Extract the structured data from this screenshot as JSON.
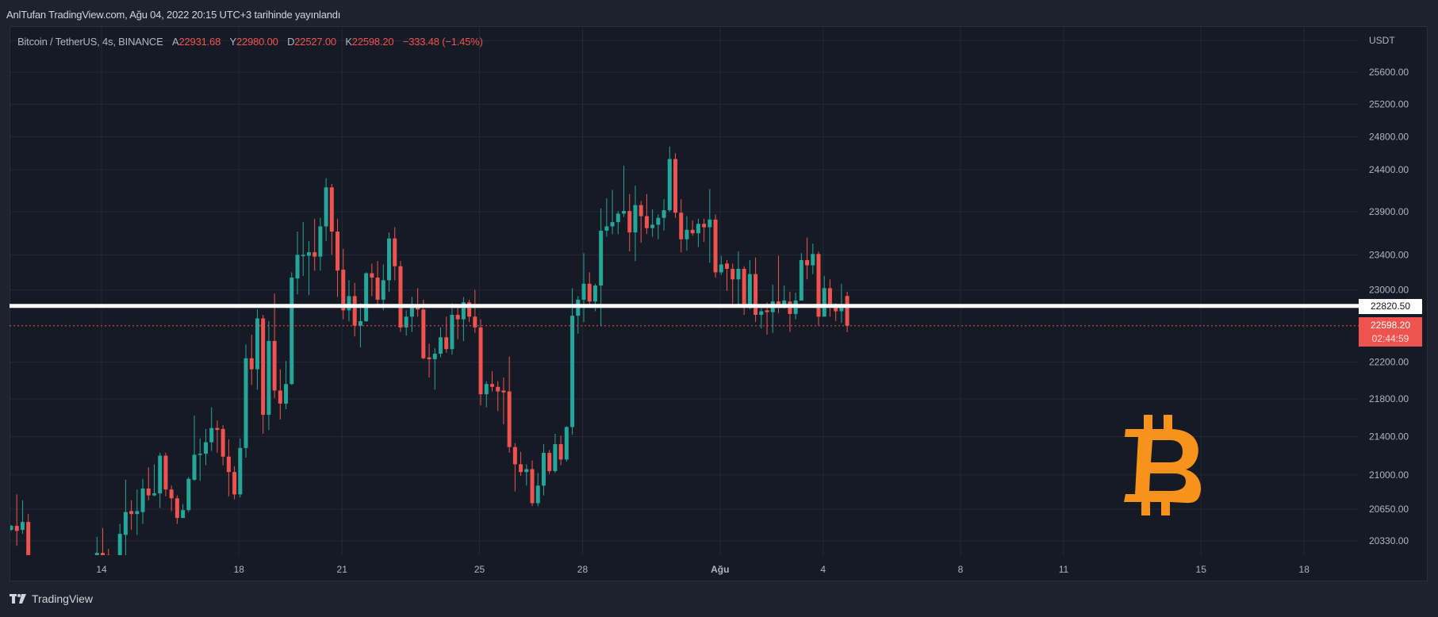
{
  "publication": {
    "text": "AnlTufan TradingView.com, Ağu 04, 2022 20:15 UTC+3 tarihinde yayınlandı"
  },
  "legend": {
    "symbol": "Bitcoin / TetherUS, 4s, BINANCE",
    "open_label": "A",
    "open": "22931.68",
    "high_label": "Y",
    "high": "22980.00",
    "low_label": "D",
    "low": "22527.00",
    "close_label": "K",
    "close": "22598.20",
    "change": "−333.48 (−1.45%)"
  },
  "price_axis": {
    "currency": "USDT"
  },
  "horizontal_level": {
    "value": 22820.5,
    "label": "22820.50",
    "color": "#ffffff"
  },
  "last_price": {
    "value": 22598.2,
    "label": "22598.20",
    "countdown": "02:44:59",
    "color": "#ef5350"
  },
  "logo": {
    "name": "bitcoin-logo",
    "color": "#f7931a"
  },
  "footer": {
    "brand": "TradingView"
  },
  "chart_data": {
    "type": "candlestick",
    "title": "Bitcoin / TetherUS, 4s, BINANCE",
    "interval": "4s",
    "scale": "log",
    "grid": true,
    "colors": {
      "up": "#26a69a",
      "down": "#ef5350",
      "background": "#161a25",
      "grid": "#242836"
    },
    "y_ticks": [
      25600,
      25200,
      24800,
      24400,
      23900,
      23400,
      23000,
      22200,
      21800,
      21400,
      21000,
      20650,
      20330
    ],
    "y_tick_labels": [
      "25600.00",
      "25200.00",
      "24800.00",
      "24400.00",
      "23900.00",
      "23400.00",
      "23000.00",
      "22200.00",
      "21800.00",
      "21400.00",
      "21000.00",
      "20650.00",
      "20330.00"
    ],
    "x_ticks": [
      {
        "label": "14",
        "date": "2022-07-14"
      },
      {
        "label": "18",
        "date": "2022-07-18"
      },
      {
        "label": "21",
        "date": "2022-07-21"
      },
      {
        "label": "25",
        "date": "2022-07-25"
      },
      {
        "label": "28",
        "date": "2022-07-28"
      },
      {
        "label": "Ağu",
        "date": "2022-08-01"
      },
      {
        "label": "4",
        "date": "2022-08-04"
      },
      {
        "label": "8",
        "date": "2022-08-08"
      },
      {
        "label": "11",
        "date": "2022-08-11"
      },
      {
        "label": "15",
        "date": "2022-08-15"
      },
      {
        "label": "18",
        "date": "2022-08-18"
      }
    ],
    "candles_ohlc": [
      [
        20440,
        20490,
        20430,
        20480
      ],
      [
        20480,
        20800,
        20280,
        20430
      ],
      [
        20440,
        20740,
        20400,
        20520
      ],
      [
        20520,
        20600,
        20000,
        20100
      ],
      null,
      null,
      null,
      null,
      null,
      null,
      null,
      null,
      null,
      null,
      null,
      [
        20150,
        20370,
        20140,
        20210
      ],
      [
        20210,
        20460,
        20150,
        20180
      ],
      [
        20190,
        20250,
        20140,
        20150
      ],
      null,
      [
        20150,
        20500,
        20100,
        20400
      ],
      [
        20390,
        20950,
        20100,
        20620
      ],
      [
        20630,
        20740,
        20440,
        20600
      ],
      [
        20600,
        20850,
        20390,
        20630
      ],
      [
        20620,
        20960,
        20500,
        20860
      ],
      [
        20860,
        21080,
        20740,
        20790
      ],
      [
        20790,
        21110,
        20780,
        20810
      ],
      [
        20810,
        21230,
        20660,
        21200
      ],
      [
        21200,
        21230,
        20780,
        20850
      ],
      [
        20850,
        20890,
        20630,
        20760
      ],
      [
        20760,
        20790,
        20500,
        20560
      ],
      [
        20560,
        20700,
        20560,
        20640
      ],
      [
        20640,
        20980,
        20620,
        20960
      ],
      [
        20950,
        21620,
        20940,
        21210
      ],
      [
        21210,
        21380,
        20940,
        21220
      ],
      [
        21220,
        21480,
        21100,
        21340
      ],
      [
        21340,
        21710,
        21250,
        21490
      ],
      [
        21490,
        21570,
        21230,
        21470
      ],
      [
        21480,
        21520,
        21100,
        21190
      ],
      [
        21190,
        21370,
        20780,
        21030
      ],
      [
        21030,
        21090,
        20750,
        20800
      ],
      [
        20800,
        21380,
        20770,
        21280
      ],
      [
        21280,
        22390,
        21180,
        22240
      ],
      [
        22240,
        22500,
        21950,
        22120
      ],
      [
        22120,
        22780,
        21900,
        22680
      ],
      [
        22680,
        22720,
        21430,
        21630
      ],
      [
        21630,
        22650,
        21470,
        22430
      ],
      [
        22430,
        22960,
        21810,
        21890
      ],
      [
        21890,
        22120,
        21580,
        21750
      ],
      [
        21750,
        22210,
        21690,
        21960
      ],
      [
        21960,
        23200,
        21950,
        23140
      ],
      [
        23130,
        23670,
        22950,
        23400
      ],
      [
        23400,
        23780,
        23160,
        23400
      ],
      [
        23390,
        23560,
        22940,
        23430
      ],
      [
        23430,
        23820,
        23220,
        23380
      ],
      [
        23380,
        23830,
        23220,
        23730
      ],
      [
        23730,
        24300,
        23560,
        24190
      ],
      [
        24190,
        24230,
        23400,
        23670
      ],
      [
        23670,
        23820,
        22920,
        23220
      ],
      [
        23230,
        23470,
        22670,
        22770
      ],
      [
        22770,
        23110,
        22650,
        22930
      ],
      [
        22930,
        23080,
        22480,
        22600
      ],
      [
        22600,
        22850,
        22360,
        22650
      ],
      [
        22650,
        23200,
        22640,
        23190
      ],
      [
        23190,
        23300,
        22930,
        23140
      ],
      [
        23140,
        23330,
        22830,
        22890
      ],
      [
        22890,
        23290,
        22770,
        23110
      ],
      [
        23110,
        23660,
        22980,
        23590
      ],
      [
        23590,
        23720,
        23110,
        23270
      ],
      [
        23270,
        23330,
        22530,
        22580
      ],
      [
        22580,
        22770,
        22490,
        22700
      ],
      [
        22700,
        22920,
        22530,
        22830
      ],
      [
        22830,
        23020,
        22700,
        22780
      ],
      [
        22780,
        22890,
        22230,
        22240
      ],
      [
        22250,
        22400,
        22030,
        22230
      ],
      [
        22230,
        22350,
        21900,
        22290
      ],
      [
        22290,
        22580,
        22250,
        22470
      ],
      [
        22470,
        22700,
        22300,
        22340
      ],
      [
        22340,
        22850,
        22280,
        22720
      ],
      [
        22720,
        22830,
        22450,
        22670
      ],
      [
        22670,
        22920,
        22430,
        22860
      ],
      [
        22860,
        22890,
        22640,
        22700
      ],
      [
        22700,
        23000,
        22520,
        22580
      ],
      [
        22580,
        22670,
        21730,
        21850
      ],
      [
        21850,
        21990,
        21710,
        21960
      ],
      [
        21960,
        22100,
        21880,
        21930
      ],
      [
        21930,
        21990,
        21670,
        21880
      ],
      [
        21890,
        22030,
        21530,
        21870
      ],
      [
        21880,
        22260,
        21230,
        21290
      ],
      [
        21290,
        21330,
        20830,
        21110
      ],
      [
        21110,
        21240,
        20990,
        21030
      ],
      [
        21030,
        21110,
        20890,
        21060
      ],
      [
        21060,
        21150,
        20680,
        20710
      ],
      [
        20710,
        21020,
        20680,
        20890
      ],
      [
        20890,
        21320,
        20790,
        21230
      ],
      [
        21230,
        21260,
        21010,
        21040
      ],
      [
        21040,
        21430,
        21020,
        21320
      ],
      [
        21320,
        21410,
        21100,
        21160
      ],
      [
        21160,
        21510,
        21140,
        21500
      ],
      [
        21500,
        23020,
        21420,
        22710
      ],
      [
        22710,
        22930,
        22510,
        22890
      ],
      [
        22890,
        23420,
        22640,
        23070
      ],
      [
        23070,
        23200,
        22830,
        22870
      ],
      [
        22870,
        23070,
        22760,
        23050
      ],
      [
        23050,
        23940,
        22600,
        23680
      ],
      [
        23680,
        24060,
        23610,
        23730
      ],
      [
        23730,
        24160,
        23640,
        23780
      ],
      [
        23780,
        23910,
        23640,
        23880
      ],
      [
        23880,
        24450,
        23840,
        23910
      ],
      [
        23910,
        24110,
        23440,
        23660
      ],
      [
        23660,
        24210,
        23330,
        23980
      ],
      [
        23980,
        24030,
        23540,
        23850
      ],
      [
        23850,
        24110,
        23640,
        23710
      ],
      [
        23710,
        23930,
        23610,
        23750
      ],
      [
        23750,
        23870,
        23580,
        23830
      ],
      [
        23830,
        24050,
        23680,
        23920
      ],
      [
        23920,
        24680,
        23900,
        24530
      ],
      [
        24530,
        24600,
        23830,
        23890
      ],
      [
        23890,
        24050,
        23430,
        23580
      ],
      [
        23580,
        23850,
        23450,
        23690
      ],
      [
        23690,
        23800,
        23620,
        23650
      ],
      [
        23650,
        23820,
        23490,
        23760
      ],
      [
        23760,
        23820,
        23550,
        23720
      ],
      [
        23720,
        24170,
        23310,
        23810
      ],
      [
        23810,
        23870,
        23140,
        23200
      ],
      [
        23200,
        23390,
        23170,
        23290
      ],
      [
        23300,
        23340,
        22990,
        23240
      ],
      [
        23240,
        23300,
        22800,
        23120
      ],
      [
        23120,
        23440,
        22830,
        23240
      ],
      [
        23240,
        23270,
        22720,
        22820
      ],
      [
        22820,
        23340,
        22780,
        23180
      ],
      [
        23180,
        23370,
        22640,
        22720
      ],
      [
        22720,
        22820,
        22570,
        22760
      ],
      [
        22770,
        22860,
        22500,
        22750
      ],
      [
        22750,
        23060,
        22520,
        22870
      ],
      [
        22870,
        23390,
        22740,
        22830
      ],
      [
        22830,
        23050,
        22790,
        22880
      ],
      [
        22870,
        22980,
        22530,
        22730
      ],
      [
        22730,
        22970,
        22670,
        22880
      ],
      [
        22880,
        23420,
        22880,
        23340
      ],
      [
        23340,
        23600,
        23120,
        23280
      ],
      [
        23280,
        23530,
        23180,
        23410
      ],
      [
        23410,
        23440,
        22600,
        22700
      ],
      [
        22700,
        23160,
        22700,
        23020
      ],
      [
        23020,
        23120,
        22700,
        22840
      ],
      [
        22840,
        22850,
        22650,
        22760
      ],
      [
        22760,
        23070,
        22630,
        22820
      ],
      [
        22931.68,
        22980,
        22527,
        22598.2
      ]
    ]
  }
}
